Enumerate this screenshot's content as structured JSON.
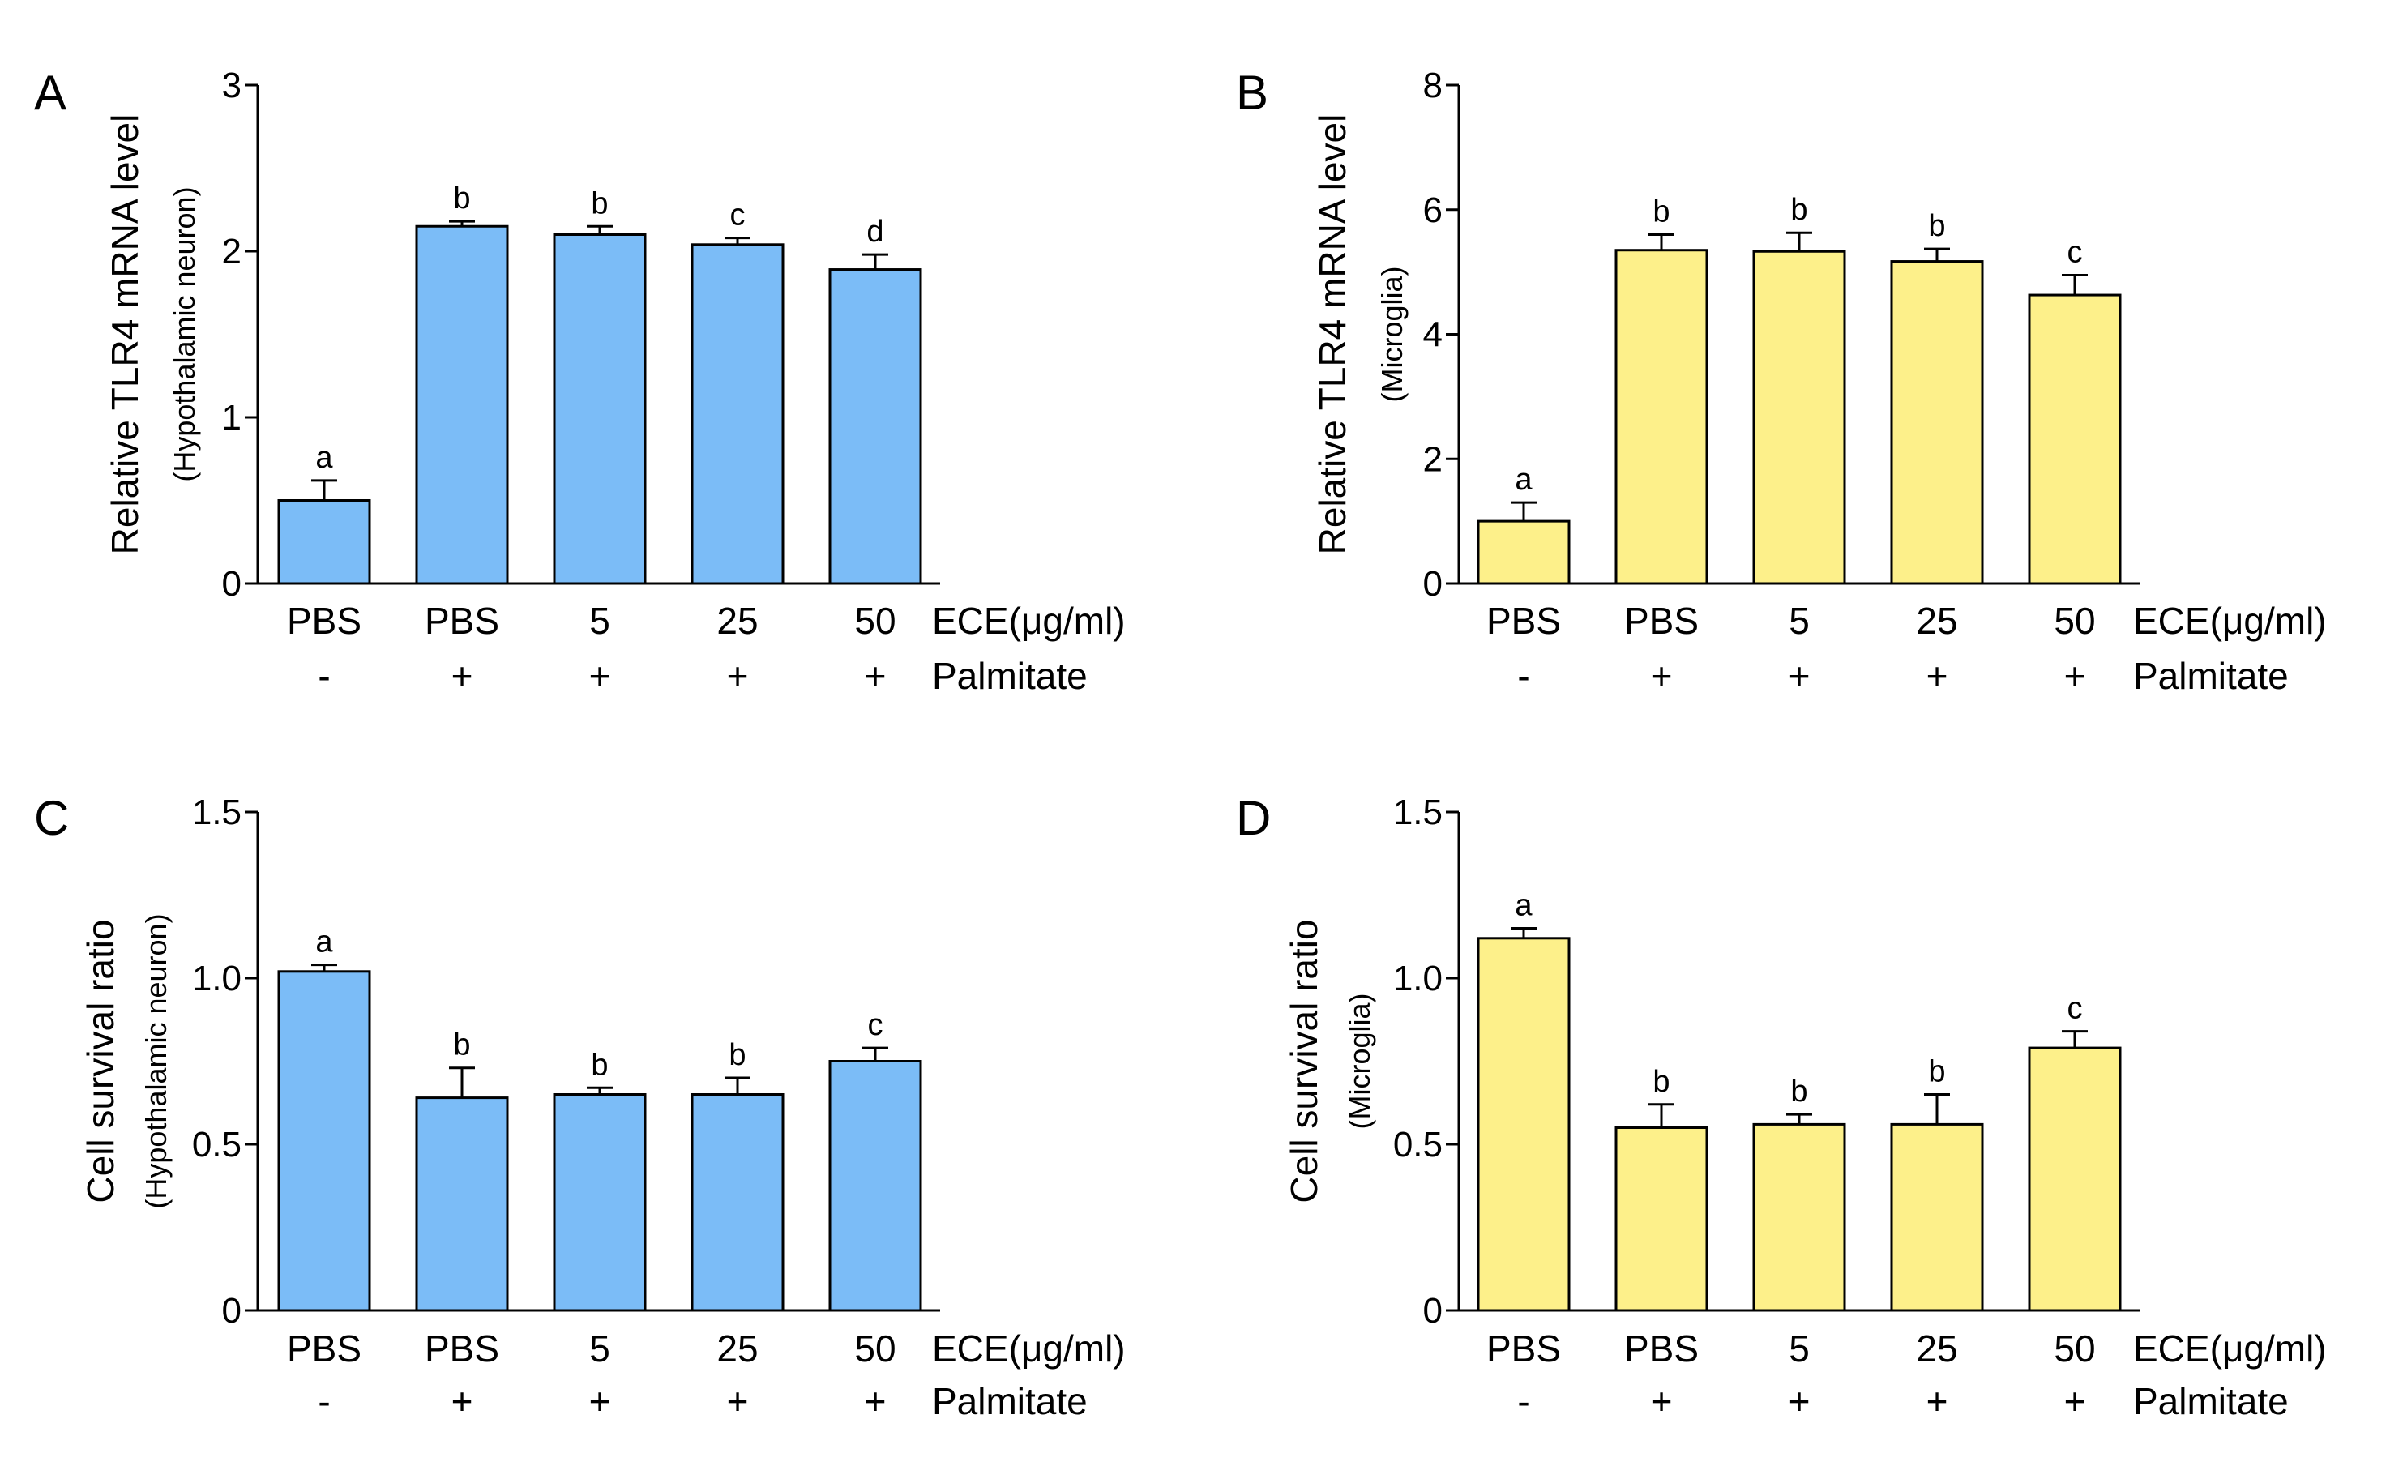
{
  "figure": {
    "panels": [
      "A",
      "B",
      "C",
      "D"
    ]
  },
  "colors": {
    "neuron_fill": "#7BBCF7",
    "microglia_fill": "#FDF08A",
    "stroke": "#000000"
  },
  "chart_data": [
    {
      "panel": "A",
      "type": "bar",
      "title": "",
      "ylabel": "Relative TLR4 mRNA level",
      "ylabel_sub": "(Hypothalamic neuron)",
      "categories": [
        "PBS",
        "PBS",
        "5",
        "25",
        "50"
      ],
      "categories_label": "ECE(μg/ml)",
      "treatment": [
        "-",
        "+",
        "+",
        "+",
        "+"
      ],
      "treatment_label": "Palmitate",
      "values": [
        0.5,
        2.15,
        2.1,
        2.04,
        1.89
      ],
      "errors": [
        0.12,
        0.03,
        0.05,
        0.04,
        0.09
      ],
      "significance": [
        "a",
        "b",
        "b",
        "c",
        "d"
      ],
      "ylim": [
        0,
        3
      ],
      "yticks": [
        0,
        1,
        2,
        3
      ],
      "ytick_labels": [
        "0",
        "1",
        "2",
        "3"
      ],
      "color": "#7BBCF7"
    },
    {
      "panel": "B",
      "type": "bar",
      "title": "",
      "ylabel": "Relative TLR4 mRNA level",
      "ylabel_sub": "(Microglia)",
      "categories": [
        "PBS",
        "PBS",
        "5",
        "25",
        "50"
      ],
      "categories_label": "ECE(μg/ml)",
      "treatment": [
        "-",
        "+",
        "+",
        "+",
        "+"
      ],
      "treatment_label": "Palmitate",
      "values": [
        1.0,
        5.35,
        5.33,
        5.17,
        4.63
      ],
      "errors": [
        0.3,
        0.25,
        0.3,
        0.2,
        0.32
      ],
      "significance": [
        "a",
        "b",
        "b",
        "b",
        "c"
      ],
      "ylim": [
        0,
        8
      ],
      "yticks": [
        0,
        2,
        4,
        6,
        8
      ],
      "ytick_labels": [
        "0",
        "2",
        "4",
        "6",
        "8"
      ],
      "color": "#FDF08A"
    },
    {
      "panel": "C",
      "type": "bar",
      "title": "",
      "ylabel": "Cell survival ratio",
      "ylabel_sub": "(Hypothalamic neuron)",
      "categories": [
        "PBS",
        "PBS",
        "5",
        "25",
        "50"
      ],
      "categories_label": "ECE(μg/ml)",
      "treatment": [
        "-",
        "+",
        "+",
        "+",
        "+"
      ],
      "treatment_label": "Palmitate",
      "values": [
        1.02,
        0.64,
        0.65,
        0.65,
        0.75
      ],
      "errors": [
        0.02,
        0.09,
        0.02,
        0.05,
        0.04
      ],
      "significance": [
        "a",
        "b",
        "b",
        "b",
        "c"
      ],
      "ylim": [
        0,
        1.5
      ],
      "yticks": [
        0,
        0.5,
        1.0,
        1.5
      ],
      "ytick_labels": [
        "0",
        "0.5",
        "1.0",
        "1.5"
      ],
      "color": "#7BBCF7"
    },
    {
      "panel": "D",
      "type": "bar",
      "title": "",
      "ylabel": "Cell survival ratio",
      "ylabel_sub": "(Microglia)",
      "categories": [
        "PBS",
        "PBS",
        "5",
        "25",
        "50"
      ],
      "categories_label": "ECE(μg/ml)",
      "treatment": [
        "-",
        "+",
        "+",
        "+",
        "+"
      ],
      "treatment_label": "Palmitate",
      "values": [
        1.12,
        0.55,
        0.56,
        0.56,
        0.79
      ],
      "errors": [
        0.03,
        0.07,
        0.03,
        0.09,
        0.05
      ],
      "significance": [
        "a",
        "b",
        "b",
        "b",
        "c"
      ],
      "ylim": [
        0,
        1.5
      ],
      "yticks": [
        0,
        0.5,
        1.0,
        1.5
      ],
      "ytick_labels": [
        "0",
        "0.5",
        "1.0",
        "1.5"
      ],
      "color": "#FDF08A"
    }
  ]
}
